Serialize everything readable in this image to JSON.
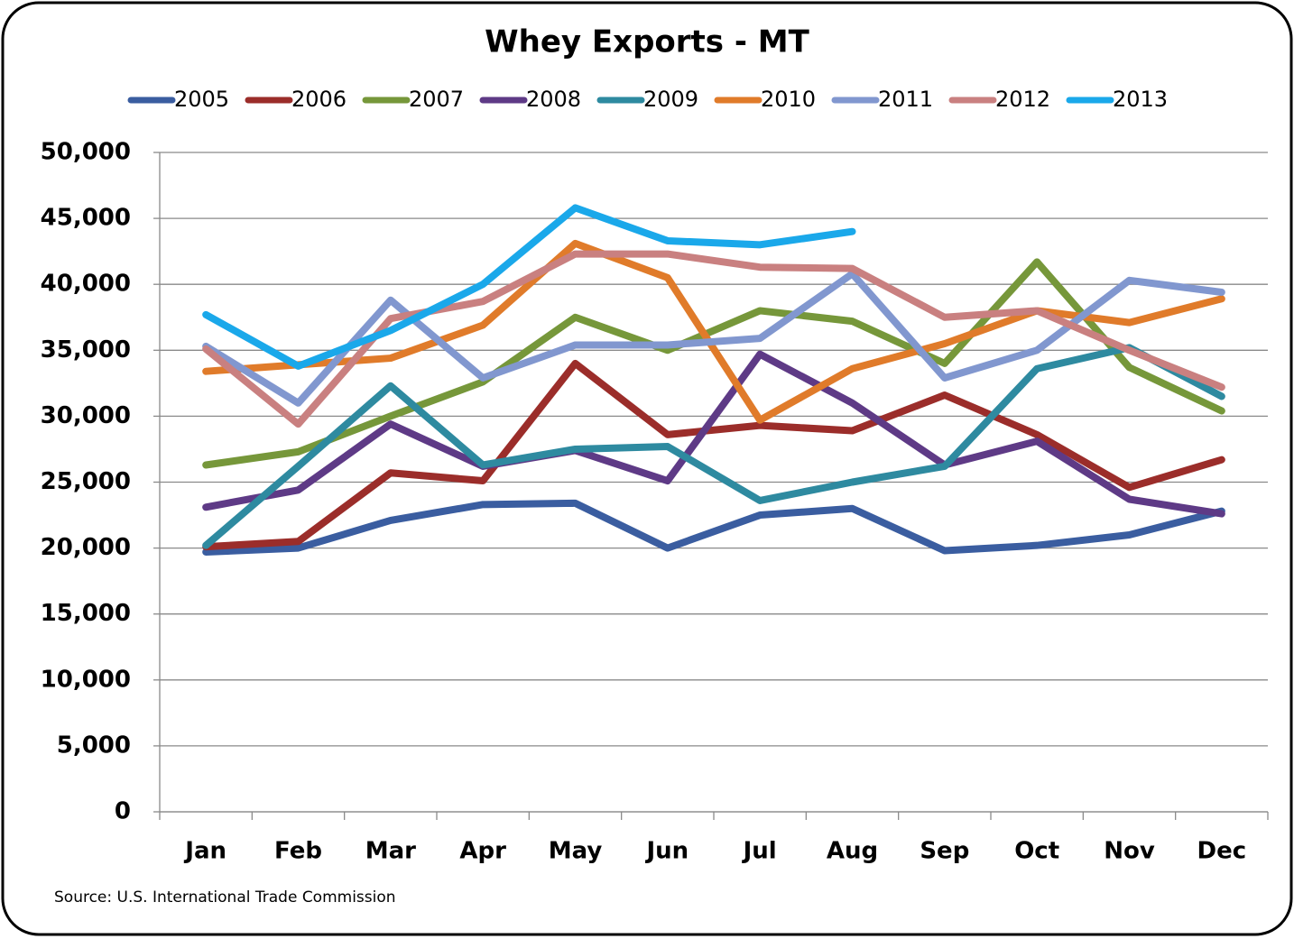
{
  "chart_data": {
    "type": "line",
    "title": "Whey Exports - MT",
    "categories": [
      "Jan",
      "Feb",
      "Mar",
      "Apr",
      "May",
      "Jun",
      "Jul",
      "Aug",
      "Sep",
      "Oct",
      "Nov",
      "Dec"
    ],
    "series": [
      {
        "name": "2005",
        "color": "#3a5da0",
        "values": [
          19700,
          20000,
          22100,
          23300,
          23400,
          20000,
          22500,
          23000,
          19800,
          20200,
          21000,
          22800
        ]
      },
      {
        "name": "2006",
        "color": "#9b2d2a",
        "values": [
          20100,
          20500,
          25700,
          25100,
          34000,
          28600,
          29300,
          28900,
          31600,
          28600,
          24600,
          26700
        ]
      },
      {
        "name": "2007",
        "color": "#76973a",
        "values": [
          26300,
          27300,
          30000,
          32600,
          37500,
          35000,
          38000,
          37200,
          34000,
          41700,
          33700,
          30400
        ]
      },
      {
        "name": "2008",
        "color": "#5e3a86",
        "values": [
          23100,
          24400,
          29400,
          26200,
          27400,
          25100,
          34700,
          31000,
          26300,
          28100,
          23700,
          22600
        ]
      },
      {
        "name": "2009",
        "color": "#2e8aa0",
        "values": [
          20200,
          26200,
          32300,
          26300,
          27500,
          27700,
          23600,
          25000,
          26200,
          33600,
          35200,
          31500
        ]
      },
      {
        "name": "2010",
        "color": "#e07b2a",
        "values": [
          33400,
          33900,
          34400,
          36900,
          43100,
          40500,
          29700,
          33600,
          35500,
          38000,
          37100,
          38900
        ]
      },
      {
        "name": "2011",
        "color": "#8197cf",
        "values": [
          35300,
          31000,
          38800,
          32900,
          35400,
          35400,
          35900,
          40800,
          32900,
          35000,
          40300,
          39400
        ]
      },
      {
        "name": "2012",
        "color": "#c98080",
        "values": [
          35100,
          29400,
          37400,
          38700,
          42300,
          42300,
          41300,
          41200,
          37500,
          38000,
          35000,
          32200
        ]
      },
      {
        "name": "2013",
        "color": "#1aa8ea",
        "values": [
          37700,
          33800,
          36500,
          40000,
          45800,
          43300,
          43000,
          44000,
          null,
          null,
          null,
          null
        ]
      }
    ],
    "ylim": [
      0,
      50000
    ],
    "yticks": [
      0,
      {
        "value": 5000,
        "label": "5,000"
      },
      {
        "value": 10000,
        "label": "10,000"
      },
      {
        "value": 15000,
        "label": "15,000"
      },
      {
        "value": 20000,
        "label": "20,000"
      },
      {
        "value": 25000,
        "label": "25,000"
      },
      {
        "value": 30000,
        "label": "30,000"
      },
      {
        "value": 35000,
        "label": "35,000"
      },
      {
        "value": 40000,
        "label": "40,000"
      },
      {
        "value": 45000,
        "label": "45,000"
      },
      {
        "value": 50000,
        "label": "50,000"
      }
    ],
    "grid": true,
    "legend": "top",
    "source": "Source: U.S. International Trade Commission"
  }
}
